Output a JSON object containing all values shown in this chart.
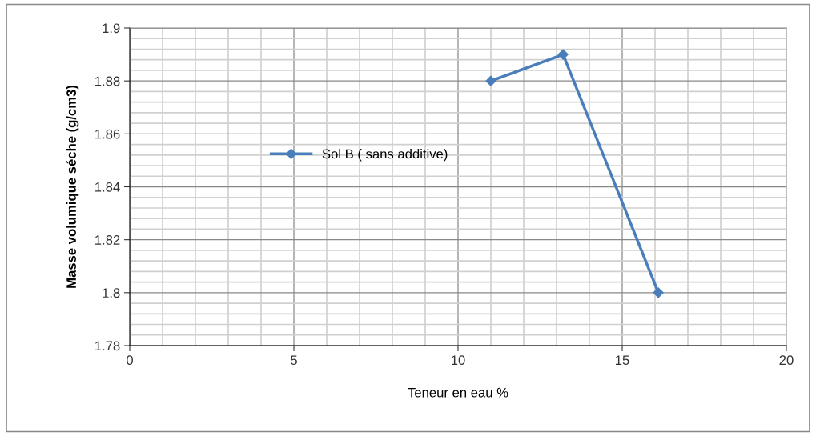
{
  "chart_data": {
    "type": "line",
    "xlabel": "Teneur en eau %",
    "ylabel": "Masse volumique séche (g/cm3)",
    "series": [
      {
        "name": "Sol B ( sans additive)",
        "color": "#4a7ebb",
        "x": [
          11.0,
          13.2,
          16.1
        ],
        "values": [
          1.88,
          1.89,
          1.8
        ]
      }
    ],
    "xlim": [
      0,
      20
    ],
    "xticks": [
      0,
      5,
      10,
      15,
      20
    ],
    "ylim": [
      1.78,
      1.9
    ],
    "yticks": [
      1.78,
      1.8,
      1.82,
      1.84,
      1.86,
      1.88,
      1.9
    ],
    "grid": true,
    "legend": "center",
    "marker": "diamond",
    "line_style": "solid"
  }
}
